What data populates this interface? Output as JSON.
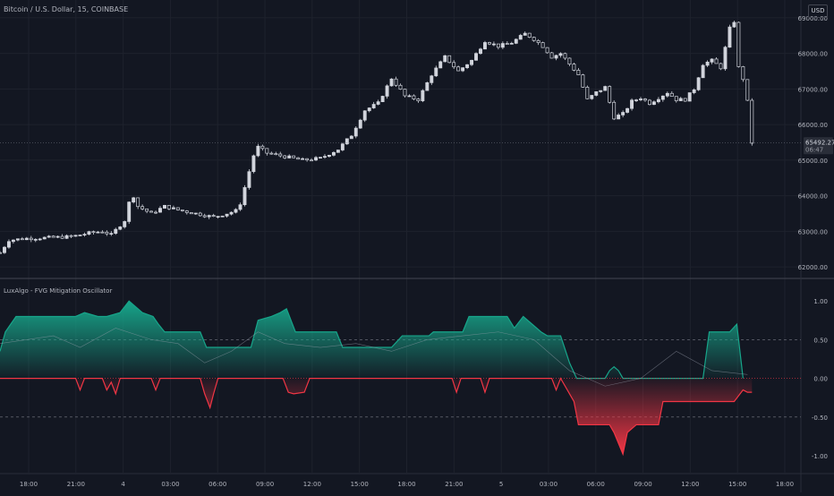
{
  "header": {
    "symbol": "Bitcoin / U.S. Dollar, 15, COINBASE",
    "currency_button": "USD",
    "indicator": "LuxAlgo - FVG Mitigation Oscillator"
  },
  "price_tag": {
    "price": "65492.27",
    "countdown": "06:47"
  },
  "colors": {
    "background": "#131722",
    "grid": "#1e222d",
    "separator": "#2a2e39",
    "candle": "#d1d4dc",
    "bull": "#17a58a",
    "bear": "#f23645",
    "axis_text": "#b2b5be"
  },
  "chart_data": [
    {
      "type": "candlestick",
      "title": "Bitcoin / U.S. Dollar, 15, COINBASE",
      "ylim": [
        61700,
        69500
      ],
      "yticks": [
        62000,
        63000,
        64000,
        65000,
        66000,
        67000,
        68000,
        69000
      ],
      "ytick_labels": [
        "62000.00",
        "63000.00",
        "64000.00",
        "65000.00",
        "66000.00",
        "67000.00",
        "68000.00",
        "69000.00"
      ],
      "x_labels": [
        "18:00",
        "21:00",
        "4",
        "03:00",
        "06:00",
        "09:00",
        "12:00",
        "15:00",
        "18:00",
        "21:00",
        "5",
        "03:00",
        "06:00",
        "09:00",
        "12:00",
        "15:00",
        "18:00"
      ],
      "last_price": 65492.27,
      "close_path": [
        [
          0,
          62400
        ],
        [
          10,
          62750
        ],
        [
          30,
          62800
        ],
        [
          55,
          62820
        ],
        [
          80,
          62850
        ],
        [
          100,
          62950
        ],
        [
          115,
          63000
        ],
        [
          125,
          62900
        ],
        [
          140,
          63300
        ],
        [
          148,
          64100
        ],
        [
          155,
          63700
        ],
        [
          170,
          63500
        ],
        [
          185,
          63700
        ],
        [
          200,
          63600
        ],
        [
          220,
          63500
        ],
        [
          240,
          63400
        ],
        [
          255,
          63500
        ],
        [
          268,
          63600
        ],
        [
          278,
          64500
        ],
        [
          288,
          65400
        ],
        [
          300,
          65200
        ],
        [
          320,
          65100
        ],
        [
          340,
          65000
        ],
        [
          360,
          65050
        ],
        [
          380,
          65300
        ],
        [
          395,
          65700
        ],
        [
          410,
          66400
        ],
        [
          425,
          66600
        ],
        [
          440,
          67300
        ],
        [
          455,
          66800
        ],
        [
          470,
          66700
        ],
        [
          485,
          67400
        ],
        [
          500,
          67900
        ],
        [
          515,
          67500
        ],
        [
          530,
          67800
        ],
        [
          545,
          68350
        ],
        [
          560,
          68200
        ],
        [
          575,
          68300
        ],
        [
          590,
          68550
        ],
        [
          600,
          68400
        ],
        [
          610,
          68200
        ],
        [
          620,
          67900
        ],
        [
          630,
          68000
        ],
        [
          640,
          67700
        ],
        [
          650,
          67400
        ],
        [
          660,
          66700
        ],
        [
          670,
          66900
        ],
        [
          680,
          67050
        ],
        [
          690,
          66200
        ],
        [
          700,
          66300
        ],
        [
          710,
          66650
        ],
        [
          720,
          66750
        ],
        [
          730,
          66600
        ],
        [
          740,
          66750
        ],
        [
          750,
          66900
        ],
        [
          760,
          66700
        ],
        [
          770,
          66700
        ],
        [
          780,
          67000
        ],
        [
          790,
          67700
        ],
        [
          800,
          67800
        ],
        [
          810,
          67600
        ],
        [
          820,
          68700
        ],
        [
          825,
          68900
        ],
        [
          830,
          67600
        ],
        [
          838,
          67100
        ],
        [
          845,
          65492.27
        ]
      ]
    },
    {
      "type": "area",
      "title": "LuxAlgo - FVG Mitigation Oscillator",
      "ylim": [
        -1.22,
        1.28
      ],
      "yticks": [
        1.0,
        0.5,
        0.0,
        -0.5,
        -1.0
      ],
      "ytick_labels": [
        "1.00",
        "0.50",
        "0.00",
        "-0.50",
        "-1.00"
      ],
      "dashed_levels": [
        0.5,
        -0.5
      ],
      "series": [
        {
          "role": "bullish area",
          "x": [
            0,
            6,
            18,
            85,
            95,
            110,
            120,
            135,
            145,
            160,
            172,
            178,
            185,
            200,
            225,
            232,
            282,
            290,
            305,
            315,
            322,
            332,
            378,
            385,
            440,
            452,
            482,
            487,
            520,
            527,
            570,
            578,
            588,
            598,
            608,
            615,
            630,
            640,
            648,
            680,
            685,
            690,
            695,
            700,
            790,
            797,
            820,
            828,
            835
          ],
          "y": [
            0.35,
            0.6,
            0.8,
            0.8,
            0.85,
            0.8,
            0.8,
            0.85,
            1.0,
            0.85,
            0.8,
            0.7,
            0.6,
            0.6,
            0.6,
            0.4,
            0.4,
            0.75,
            0.8,
            0.85,
            0.9,
            0.6,
            0.6,
            0.4,
            0.4,
            0.55,
            0.55,
            0.6,
            0.6,
            0.8,
            0.8,
            0.65,
            0.8,
            0.7,
            0.6,
            0.55,
            0.55,
            0.2,
            0.0,
            0.0,
            0.1,
            0.15,
            0.1,
            0.0,
            0.0,
            0.6,
            0.6,
            0.7,
            0.0
          ]
        },
        {
          "role": "bearish area",
          "x": [
            0,
            85,
            90,
            95,
            115,
            120,
            125,
            130,
            135,
            170,
            175,
            180,
            225,
            230,
            236,
            240,
            245,
            318,
            324,
            330,
            342,
            348,
            508,
            513,
            518,
            540,
            545,
            550,
            620,
            625,
            630,
            645,
            650,
            655,
            685,
            690,
            700,
            705,
            715,
            740,
            745,
            825,
            835,
            840,
            845
          ],
          "y": [
            0.0,
            0.0,
            -0.15,
            0.0,
            0.0,
            -0.15,
            -0.05,
            -0.2,
            0.0,
            0.0,
            -0.15,
            0.0,
            0.0,
            -0.2,
            -0.38,
            -0.2,
            0.0,
            0.0,
            -0.18,
            -0.2,
            -0.18,
            0.0,
            0.0,
            -0.18,
            0.0,
            0.0,
            -0.18,
            0.0,
            0.0,
            -0.15,
            0.0,
            -0.3,
            -0.6,
            -0.6,
            -0.6,
            -0.7,
            -0.98,
            -0.7,
            -0.6,
            -0.6,
            -0.3,
            -0.3,
            -0.15,
            -0.18,
            -0.18
          ]
        }
      ]
    }
  ]
}
